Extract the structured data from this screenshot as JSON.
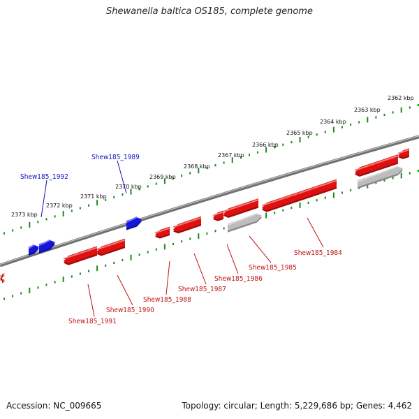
{
  "title": "Shewanella baltica OS185, complete genome",
  "footer": {
    "accession": "Accession: NC_009665",
    "summary": "Topology: circular; Length: 5,229,686 bp; Genes: 4,462"
  },
  "colors": {
    "background": "#ffffff",
    "backbone": "#707070",
    "tick": "#1a8a1a",
    "forward_gene": "#1515e0",
    "reverse_gene": "#e01010",
    "pseudo_gene": "#bdbdbd",
    "forward_label": "#1010c0",
    "reverse_label": "#c01010"
  },
  "scale_labels": [
    "2362 kbp",
    "2363 kbp",
    "2364 kbp",
    "2365 kbp",
    "2366 kbp",
    "2367 kbp",
    "2368 kbp",
    "2369 kbp",
    "2370 kbp",
    "2371 kbp",
    "2372 kbp",
    "2373 kbp"
  ],
  "gene_labels": {
    "forward": [
      "Shew185_1989",
      "Shew185_1992"
    ],
    "reverse": [
      "Shew185_1984",
      "Shew185_1985",
      "Shew185_1986",
      "Shew185_1987",
      "Shew185_1988",
      "Shew185_1990",
      "Shew185_1991"
    ]
  }
}
